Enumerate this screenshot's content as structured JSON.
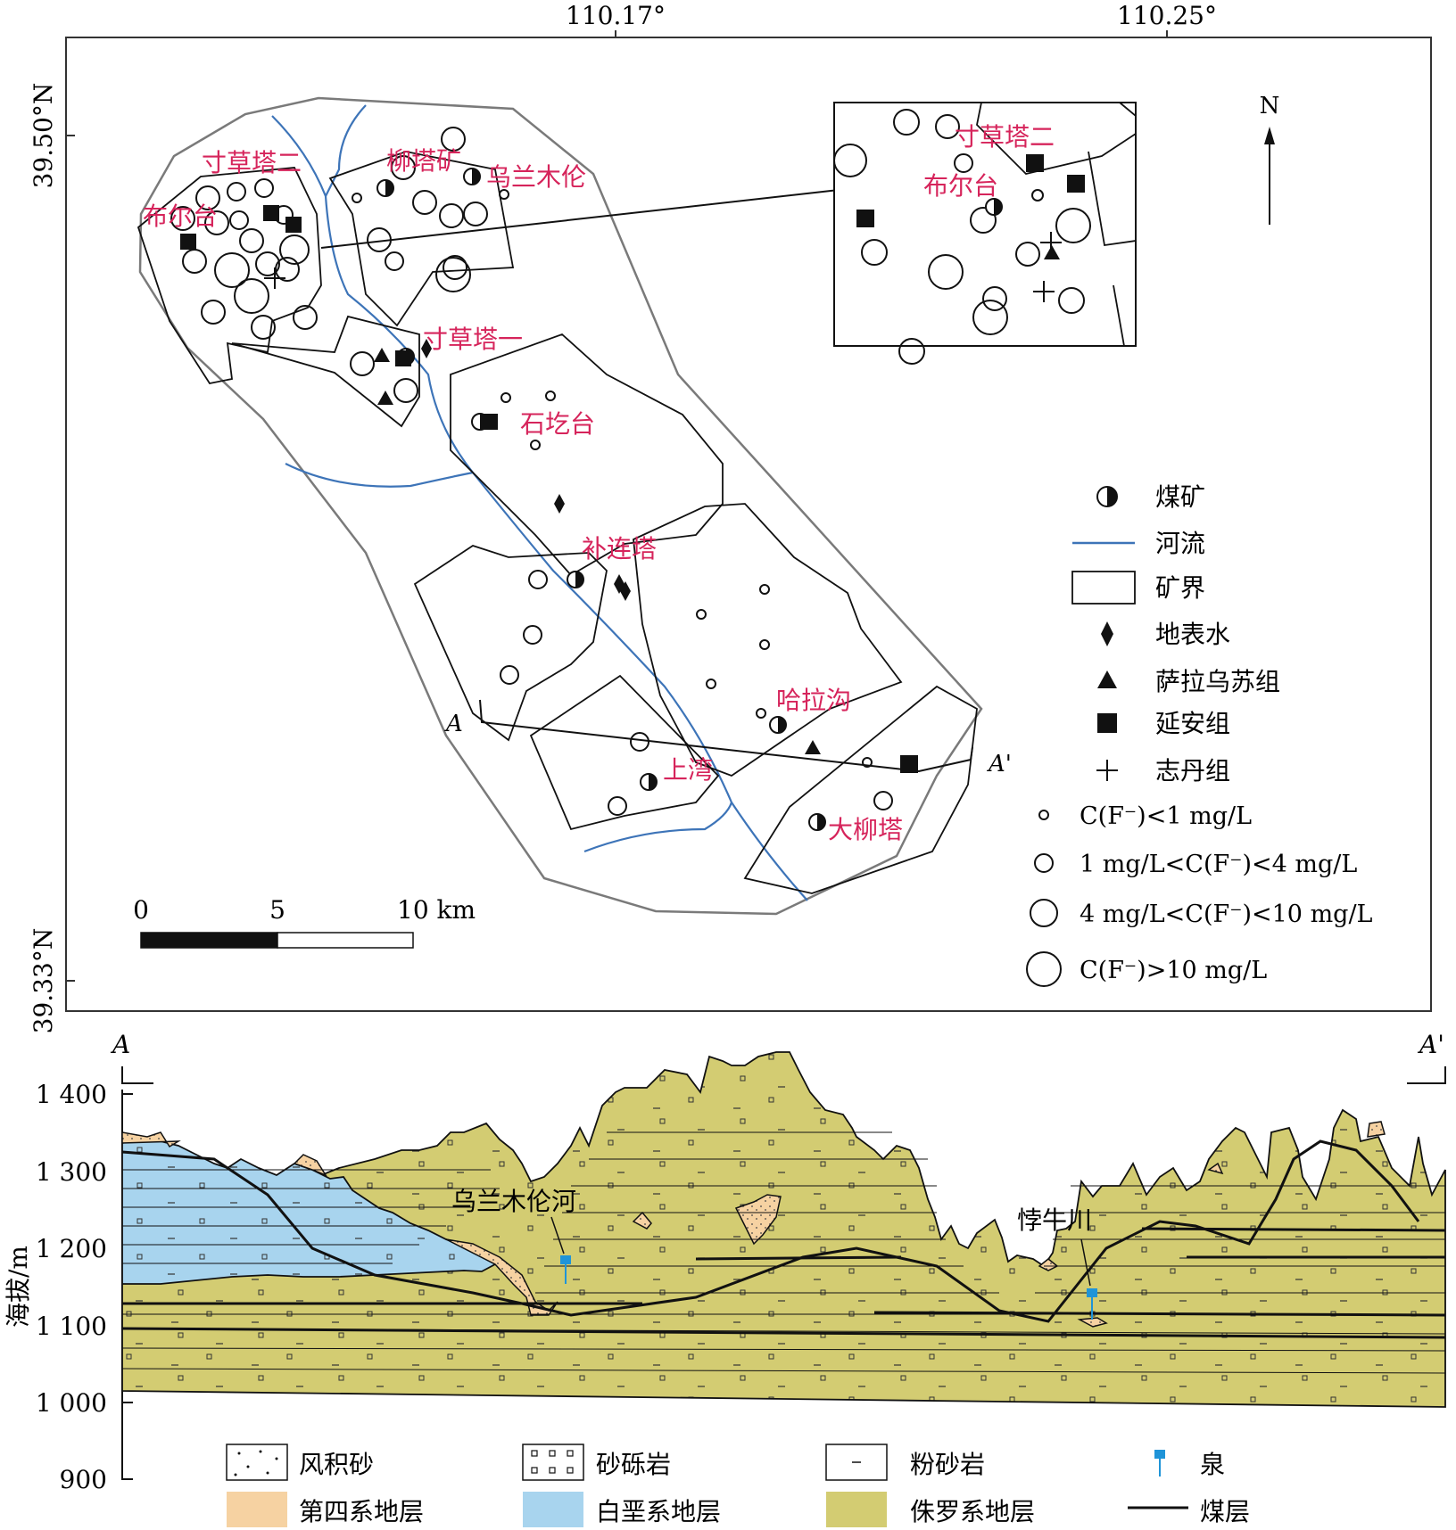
{
  "map": {
    "lon_labels": [
      "110.17°",
      "110.25°"
    ],
    "lat_labels": [
      "39.50°N",
      "39.33°N"
    ],
    "north_label": "N",
    "section_start": "A",
    "section_end": "A'",
    "places": {
      "cuncaota2": "寸草塔二",
      "buertai": "布尔台",
      "liutakuang": "柳塔矿",
      "wulanmulun": "乌兰木伦",
      "cuncaota1": "寸草塔一",
      "shigetai": "石圪台",
      "bulianta": "补连塔",
      "halagou": "哈拉沟",
      "shangwan": "上湾",
      "daliuta": "大柳塔"
    },
    "inset_places": {
      "cuncaota2": "寸草塔二",
      "buertai": "布尔台"
    },
    "scale": {
      "zero": "0",
      "mid": "5",
      "end": "10 km"
    },
    "legend": {
      "coal_mine": "煤矿",
      "river": "河流",
      "mine_boundary": "矿界",
      "surface_water": "地表水",
      "salawusu": "萨拉乌苏组",
      "yanan": "延安组",
      "zhidan": "志丹组",
      "f_class1": "C(F⁻)<1 mg/L",
      "f_class2": "1 mg/L<C(F⁻)<4 mg/L",
      "f_class3": "4 mg/L<C(F⁻)<10 mg/L",
      "f_class4": "C(F⁻)>10 mg/L"
    },
    "colors": {
      "place_label": "#d6245b",
      "river": "#3d74b8",
      "outline": "#7a7a7a"
    }
  },
  "section": {
    "start": "A",
    "end": "A'",
    "ylabel": "海拔/m",
    "yticks": [
      "1 400",
      "1 300",
      "1 200",
      "1 100",
      "1 000",
      "900"
    ],
    "river_labels": {
      "wulanmulun_river": "乌兰木伦河",
      "bozniuchuan": "悖牛川"
    },
    "legend": {
      "aeolian_sand": "风积砂",
      "conglomerate": "砂砾岩",
      "siltstone": "粉砂岩",
      "spring": "泉",
      "quaternary": "第四系地层",
      "cretaceous": "白垩系地层",
      "jurassic": "侏罗系地层",
      "coal_seam": "煤层"
    },
    "colors": {
      "quaternary": "#f6d2a2",
      "cretaceous": "#a8d4ee",
      "jurassic": "#d3cc72",
      "spring": "#1f94d8"
    }
  }
}
